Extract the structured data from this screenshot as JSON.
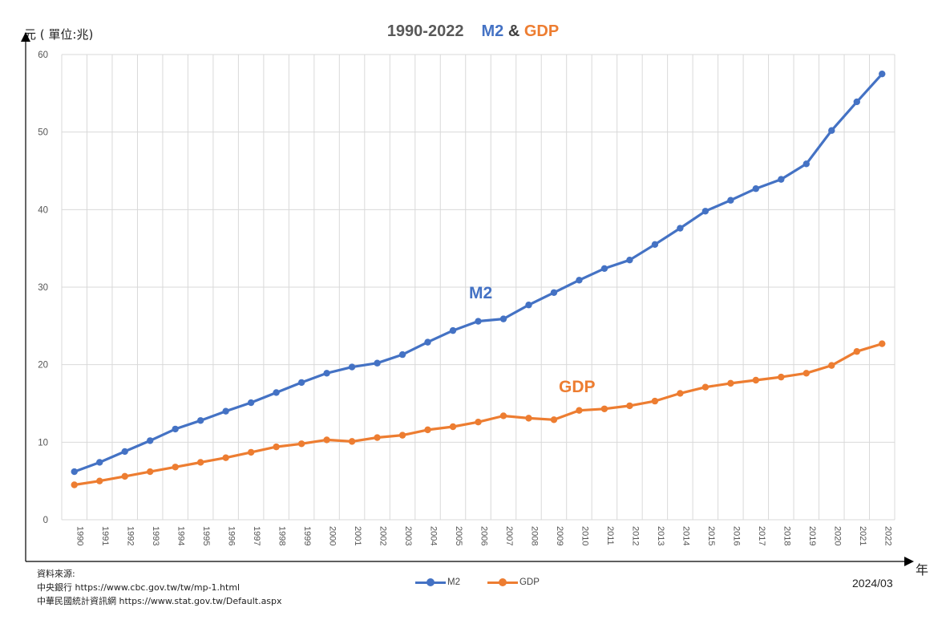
{
  "title": {
    "years": "1990-2022",
    "m2": "M2",
    "amp": "&",
    "gdp": "GDP"
  },
  "y_unit": "元 ( 單位:兆)",
  "x_unit": "年",
  "date": "2024/03",
  "source": {
    "heading": "資料來源:",
    "line1": "中央銀行 https://www.cbc.gov.tw/tw/mp-1.html",
    "line2": "中華民國統計資訊網 https://www.stat.gov.tw/Default.aspx"
  },
  "colors": {
    "m2": "#4472c4",
    "gdp": "#ed7d31",
    "grid": "#d9d9d9",
    "axis": "#000000"
  },
  "chart_data": {
    "type": "line",
    "x": [
      "1990",
      "1991",
      "1992",
      "1993",
      "1994",
      "1995",
      "1996",
      "1997",
      "1998",
      "1999",
      "2000",
      "2001",
      "2002",
      "2003",
      "2004",
      "2005",
      "2006",
      "2007",
      "2008",
      "2009",
      "2010",
      "2011",
      "2012",
      "2013",
      "2014",
      "2015",
      "2016",
      "2017",
      "2018",
      "2019",
      "2020",
      "2021",
      "2022"
    ],
    "ylim": [
      0,
      60
    ],
    "yticks": [
      0,
      10,
      20,
      30,
      40,
      50,
      60
    ],
    "grid": true,
    "legend": "bottom",
    "series": [
      {
        "name": "M2",
        "label": "M2",
        "values": [
          6.2,
          7.4,
          8.8,
          10.2,
          11.7,
          12.8,
          14.0,
          15.1,
          16.4,
          17.7,
          18.9,
          19.7,
          20.2,
          21.3,
          22.9,
          24.4,
          25.6,
          25.9,
          27.7,
          29.3,
          30.9,
          32.4,
          33.5,
          35.5,
          37.6,
          39.8,
          41.2,
          42.7,
          43.9,
          45.9,
          50.2,
          53.9,
          57.5
        ]
      },
      {
        "name": "GDP",
        "label": "GDP",
        "values": [
          4.5,
          5.0,
          5.6,
          6.2,
          6.8,
          7.4,
          8.0,
          8.7,
          9.4,
          9.8,
          10.3,
          10.1,
          10.6,
          10.9,
          11.6,
          12.0,
          12.6,
          13.4,
          13.1,
          12.9,
          14.1,
          14.3,
          14.7,
          15.3,
          16.3,
          17.1,
          17.6,
          18.0,
          18.4,
          18.9,
          19.9,
          21.7,
          22.7
        ]
      }
    ]
  }
}
